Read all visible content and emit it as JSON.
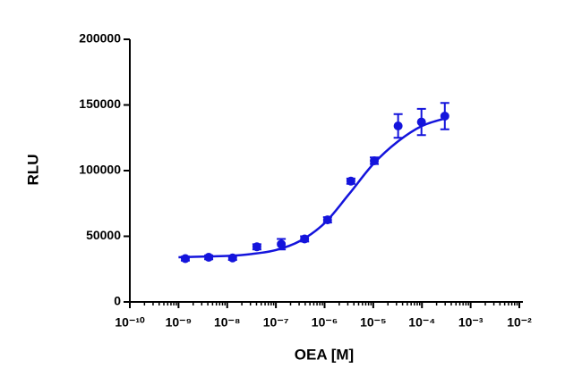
{
  "chart_data": {
    "type": "scatter",
    "x_label": "OEA [M]",
    "y_label": "RLU",
    "x": [
      1.38e-09,
      4.17e-09,
      1.29e-08,
      4.07e-08,
      1.29e-07,
      3.89e-07,
      1.15e-06,
      3.47e-06,
      1.05e-05,
      3.24e-05,
      9.77e-05,
      0.000295
    ],
    "values": [
      33000,
      34000,
      33500,
      42000,
      44000,
      48000,
      62500,
      92000,
      107500,
      134000,
      137000,
      141500
    ],
    "errors": [
      1500,
      1500,
      1500,
      2000,
      4000,
      2000,
      2000,
      2000,
      2500,
      9000,
      10000,
      10000
    ],
    "fit": {
      "x": [
        1e-09,
        3.16e-09,
        1e-08,
        3.16e-08,
        1e-07,
        3.16e-07,
        1e-06,
        3.16e-06,
        1e-05,
        3.16e-05,
        0.0001,
        0.000316
      ],
      "values": [
        34000,
        34500,
        35000,
        36500,
        39500,
        46500,
        60000,
        82000,
        105000,
        122000,
        134000,
        140000
      ]
    },
    "color": "#1414dc",
    "x_log": true,
    "xlim": [
      1e-10,
      0.01
    ],
    "xticks": [
      {
        "value": 1e-10,
        "label": "10⁻¹⁰"
      },
      {
        "value": 1e-09,
        "label": "10⁻⁹"
      },
      {
        "value": 1e-08,
        "label": "10⁻⁸"
      },
      {
        "value": 1e-07,
        "label": "10⁻⁷"
      },
      {
        "value": 1e-06,
        "label": "10⁻⁶"
      },
      {
        "value": 1e-05,
        "label": "10⁻⁵"
      },
      {
        "value": 0.0001,
        "label": "10⁻⁴"
      },
      {
        "value": 0.001,
        "label": "10⁻³"
      },
      {
        "value": 0.01,
        "label": "10⁻²"
      }
    ],
    "ylim": [
      0,
      200000
    ],
    "yticks": [
      0,
      50000,
      100000,
      150000,
      200000
    ]
  }
}
